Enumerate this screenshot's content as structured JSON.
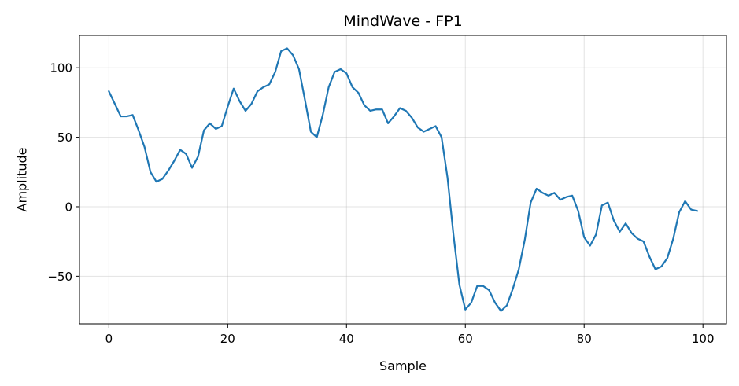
{
  "chart_data": {
    "type": "line",
    "title": "MindWave - FP1",
    "xlabel": "Sample",
    "ylabel": "Amplitude",
    "xlim": [
      -4.95,
      103.95
    ],
    "ylim": [
      -84.3,
      123.3
    ],
    "xticks": [
      0,
      20,
      40,
      60,
      80,
      100
    ],
    "yticks": [
      -50,
      0,
      50,
      100
    ],
    "xtick_labels": [
      "0",
      "20",
      "40",
      "60",
      "80",
      "100"
    ],
    "ytick_labels": [
      "−50",
      "0",
      "50",
      "100"
    ],
    "grid": true,
    "line_color": "#1f77b4",
    "series": [
      {
        "x": [
          0,
          1,
          2,
          3,
          4,
          5,
          6,
          7,
          8,
          9,
          10,
          11,
          12,
          13,
          14,
          15,
          16,
          17,
          18,
          19,
          20,
          21,
          22,
          23,
          24,
          25,
          26,
          27,
          28,
          29,
          30,
          31,
          32,
          33,
          34,
          35,
          36,
          37,
          38,
          39,
          40,
          41,
          42,
          43,
          44,
          45,
          46,
          47,
          48,
          49,
          50,
          51,
          52,
          53,
          54,
          55,
          56,
          57,
          58,
          59,
          60,
          61,
          62,
          63,
          64,
          65,
          66,
          67,
          68,
          69,
          70,
          71,
          72,
          73,
          74,
          75,
          76,
          77,
          78,
          79,
          80,
          81,
          82,
          83,
          84,
          85,
          86,
          87,
          88,
          89,
          90,
          91,
          92,
          93,
          94,
          95,
          96,
          97,
          98,
          99
        ],
        "values": [
          83,
          74,
          65,
          65,
          66,
          55,
          43,
          25,
          18,
          20,
          26,
          33,
          41,
          38,
          28,
          36,
          55,
          60,
          56,
          58,
          72,
          85,
          76,
          69,
          74,
          83,
          86,
          88,
          97,
          112,
          114,
          109,
          99,
          77,
          54,
          50,
          66,
          86,
          97,
          99,
          96,
          86,
          82,
          73,
          69,
          70,
          70,
          60,
          65,
          71,
          69,
          64,
          57,
          54,
          56,
          58,
          50,
          21,
          -20,
          -56,
          -74,
          -69,
          -57,
          -57,
          -60,
          -69,
          -75,
          -71,
          -59,
          -45,
          -24,
          3,
          13,
          10,
          8,
          10,
          5,
          7,
          8,
          -3,
          -22,
          -28,
          -20,
          1,
          3,
          -10,
          -18,
          -12,
          -19,
          -23,
          -25,
          -36,
          -45,
          -43,
          -37,
          -23,
          -4,
          4,
          -2,
          -3
        ]
      }
    ]
  }
}
